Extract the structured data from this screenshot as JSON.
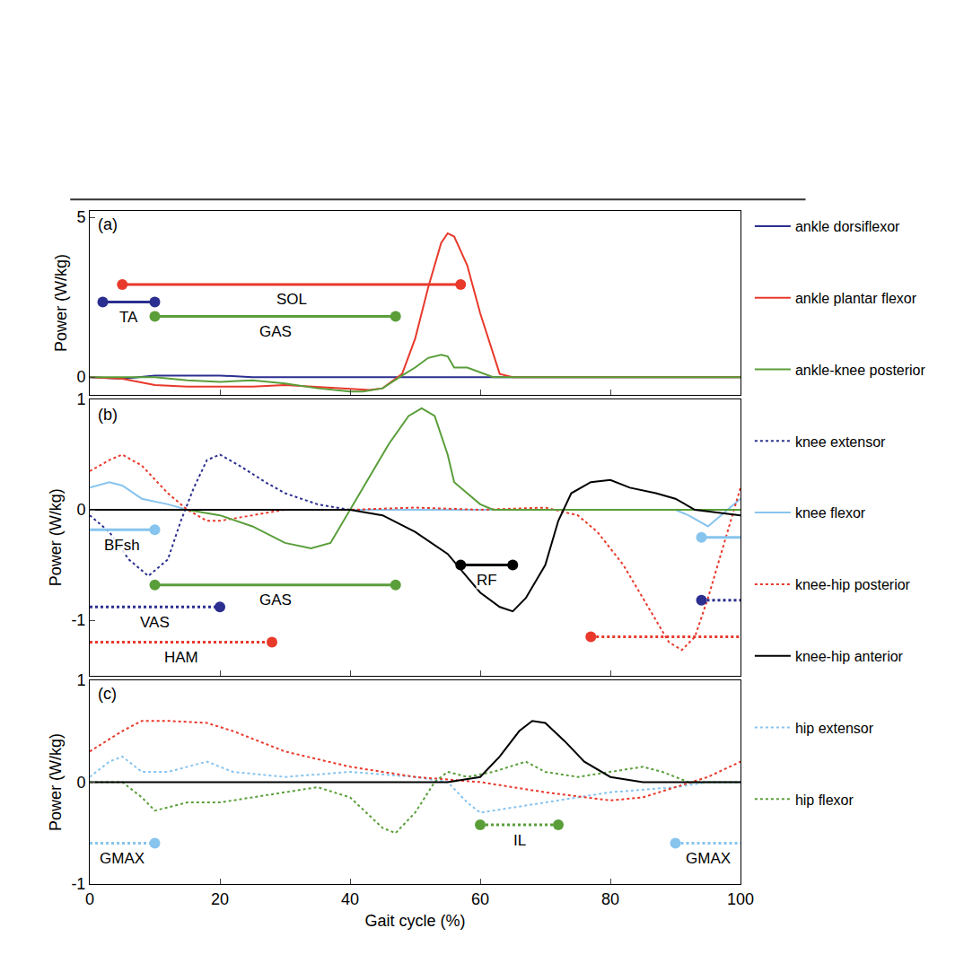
{
  "chart_data": [
    {
      "type": "line",
      "panel": "(a)",
      "ylabel": "Power (W/kg)",
      "xlim": [
        0,
        100
      ],
      "xticks": [
        0,
        20,
        40,
        60,
        80,
        100
      ],
      "ylim": [
        -0.55,
        5.2
      ],
      "yticks": [
        0,
        5
      ],
      "tick_labels": "y",
      "legend": "right",
      "series": [
        {
          "name": "ankle dorsiflexor",
          "color": "#2b2f8f",
          "line_style": "solid",
          "x": [
            0,
            5,
            10,
            20,
            25,
            100
          ],
          "values": [
            0,
            -0.05,
            0.05,
            0.05,
            0,
            0
          ]
        },
        {
          "name": "ankle plantar flexor",
          "color": "#e8392b",
          "line_style": "solid",
          "x": [
            0,
            5,
            10,
            15,
            20,
            25,
            30,
            35,
            40,
            43,
            45,
            48,
            50,
            52,
            54,
            55,
            56,
            58,
            60,
            62,
            63,
            65,
            100
          ],
          "values": [
            0,
            -0.05,
            -0.25,
            -0.3,
            -0.3,
            -0.3,
            -0.25,
            -0.3,
            -0.35,
            -0.4,
            -0.35,
            0.1,
            1.2,
            2.8,
            4.2,
            4.5,
            4.4,
            3.5,
            2.0,
            0.7,
            0.1,
            0,
            0
          ]
        },
        {
          "name": "ankle-knee posterior",
          "color": "#5a9e3a",
          "line_style": "solid",
          "x": [
            0,
            10,
            15,
            20,
            25,
            30,
            35,
            40,
            42,
            45,
            48,
            50,
            52,
            54,
            55,
            56,
            58,
            60,
            62,
            100
          ],
          "values": [
            0,
            0,
            -0.1,
            -0.15,
            -0.1,
            -0.2,
            -0.35,
            -0.45,
            -0.45,
            -0.35,
            0.05,
            0.3,
            0.6,
            0.7,
            0.65,
            0.3,
            0.3,
            0.15,
            0,
            0
          ]
        }
      ],
      "activity": [
        {
          "label": "SOL",
          "color": "#e8392b",
          "line_style": "solid",
          "x": [
            5,
            57
          ],
          "y": 2.9,
          "dots": [
            5,
            57
          ]
        },
        {
          "label": "TA",
          "color": "#2b2f8f",
          "line_style": "solid",
          "x": [
            2,
            10
          ],
          "y": 2.35,
          "dots": [
            2,
            10
          ]
        },
        {
          "label": "GAS",
          "color": "#5a9e3a",
          "line_style": "solid",
          "x": [
            10,
            47
          ],
          "y": 1.9,
          "dots": [
            10,
            47
          ]
        }
      ]
    },
    {
      "type": "line",
      "panel": "(b)",
      "ylabel": "Power (W/kg)",
      "xlim": [
        0,
        100
      ],
      "xticks": [
        0,
        20,
        40,
        60,
        80,
        100
      ],
      "ylim": [
        -1.5,
        1.0
      ],
      "yticks": [
        -1,
        0,
        1
      ],
      "tick_labels": "y",
      "series": [
        {
          "name": "knee extensor",
          "color": "#2b2f8f",
          "line_style": "dotted",
          "x": [
            0,
            3,
            6,
            9,
            12,
            14,
            16,
            18,
            20,
            23,
            27,
            30,
            35,
            40,
            100
          ],
          "values": [
            -0.05,
            -0.2,
            -0.45,
            -0.6,
            -0.45,
            -0.1,
            0.2,
            0.45,
            0.5,
            0.4,
            0.25,
            0.15,
            0.05,
            0,
            0
          ]
        },
        {
          "name": "knee flexor",
          "color": "#87c4ee",
          "line_style": "solid",
          "x": [
            0,
            3,
            5,
            8,
            12,
            15,
            20,
            90,
            92,
            95,
            97,
            100
          ],
          "values": [
            0.2,
            0.25,
            0.22,
            0.1,
            0.05,
            0,
            0,
            0,
            -0.05,
            -0.15,
            -0.05,
            0.1
          ]
        },
        {
          "name": "knee-hip posterior",
          "color": "#e8392b",
          "line_style": "dotted",
          "x": [
            0,
            3,
            5,
            8,
            12,
            15,
            18,
            20,
            25,
            30,
            40,
            50,
            60,
            70,
            75,
            78,
            82,
            86,
            89,
            91,
            93,
            95,
            97,
            100
          ],
          "values": [
            0.35,
            0.45,
            0.5,
            0.4,
            0.15,
            0,
            -0.1,
            -0.1,
            -0.05,
            0,
            0,
            0.02,
            0,
            0.02,
            -0.05,
            -0.2,
            -0.5,
            -0.9,
            -1.2,
            -1.27,
            -1.15,
            -0.8,
            -0.4,
            0.2
          ]
        },
        {
          "name": "ankle-knee posterior",
          "color": "#5a9e3a",
          "line_style": "solid",
          "x": [
            0,
            15,
            20,
            25,
            30,
            34,
            37,
            40,
            43,
            46,
            49,
            51,
            53,
            55,
            56,
            58,
            60,
            62,
            100
          ],
          "values": [
            0,
            0,
            -0.05,
            -0.15,
            -0.3,
            -0.35,
            -0.3,
            0,
            0.3,
            0.6,
            0.85,
            0.92,
            0.85,
            0.5,
            0.25,
            0.15,
            0.05,
            0,
            0
          ]
        },
        {
          "name": "knee-hip anterior",
          "color": "#000000",
          "line_style": "solid",
          "x": [
            0,
            40,
            45,
            50,
            55,
            60,
            63,
            65,
            67,
            70,
            72,
            74,
            77,
            80,
            83,
            87,
            90,
            93,
            100
          ],
          "values": [
            0,
            0,
            -0.05,
            -0.2,
            -0.4,
            -0.75,
            -0.88,
            -0.92,
            -0.8,
            -0.5,
            -0.1,
            0.15,
            0.25,
            0.27,
            0.2,
            0.15,
            0.1,
            0,
            -0.05
          ]
        }
      ],
      "activity": [
        {
          "label": "BFsh",
          "color": "#87c4ee",
          "line_style": "solid",
          "x": [
            0,
            10
          ],
          "y": -0.18,
          "dots": [
            10
          ]
        },
        {
          "color": "#87c4ee",
          "line_style": "solid",
          "x": [
            94,
            100
          ],
          "y": -0.25,
          "dots": [
            94
          ]
        },
        {
          "label": "GAS",
          "color": "#5a9e3a",
          "line_style": "solid",
          "x": [
            10,
            47
          ],
          "y": -0.68,
          "dots": [
            10,
            47
          ]
        },
        {
          "label": "VAS",
          "color": "#2b2f8f",
          "line_style": "dotted",
          "x": [
            0,
            20
          ],
          "y": -0.88,
          "dots": [
            20
          ]
        },
        {
          "color": "#2b2f8f",
          "line_style": "dotted",
          "x": [
            94,
            100
          ],
          "y": -0.82,
          "dots": [
            94
          ]
        },
        {
          "label": "HAM",
          "color": "#e8392b",
          "line_style": "dotted",
          "x": [
            0,
            28
          ],
          "y": -1.2,
          "dots": [
            28
          ]
        },
        {
          "color": "#e8392b",
          "line_style": "dotted",
          "x": [
            77,
            100
          ],
          "y": -1.15,
          "dots": [
            77
          ]
        },
        {
          "label": "RF",
          "color": "#000000",
          "line_style": "solid",
          "x": [
            57,
            65
          ],
          "y": -0.5,
          "dots": [
            57,
            65
          ]
        }
      ]
    },
    {
      "type": "line",
      "panel": "(c)",
      "ylabel": "Power (W/kg)",
      "xlabel": "Gait cycle (%)",
      "xlim": [
        0,
        100
      ],
      "xticks": [
        0,
        20,
        40,
        60,
        80,
        100
      ],
      "ylim": [
        -1,
        1
      ],
      "yticks": [
        -1,
        0,
        1
      ],
      "tick_labels": true,
      "series": [
        {
          "name": "hip extensor",
          "color": "#87c4ee",
          "line_style": "dotted",
          "x": [
            0,
            3,
            5,
            8,
            12,
            18,
            22,
            30,
            40,
            50,
            55,
            58,
            60,
            65,
            70,
            80,
            90,
            95,
            100
          ],
          "values": [
            0.05,
            0.2,
            0.25,
            0.1,
            0.1,
            0.2,
            0.1,
            0.05,
            0.1,
            0.05,
            0,
            -0.2,
            -0.3,
            -0.25,
            -0.2,
            -0.1,
            -0.05,
            0,
            0
          ]
        },
        {
          "name": "knee-hip posterior",
          "color": "#e8392b",
          "line_style": "dotted",
          "x": [
            0,
            5,
            8,
            12,
            18,
            22,
            30,
            40,
            50,
            60,
            70,
            80,
            85,
            90,
            95,
            100
          ],
          "values": [
            0.3,
            0.5,
            0.6,
            0.6,
            0.58,
            0.5,
            0.3,
            0.15,
            0.05,
            0,
            -0.1,
            -0.18,
            -0.15,
            -0.05,
            0.05,
            0.2
          ]
        },
        {
          "name": "hip flexor",
          "color": "#5a9e3a",
          "line_style": "dotted",
          "x": [
            0,
            5,
            8,
            10,
            15,
            20,
            25,
            30,
            35,
            40,
            45,
            47,
            50,
            53,
            55,
            58,
            62,
            67,
            70,
            75,
            80,
            85,
            88,
            92,
            100
          ],
          "values": [
            0,
            0,
            -0.15,
            -0.28,
            -0.2,
            -0.2,
            -0.15,
            -0.1,
            -0.05,
            -0.15,
            -0.45,
            -0.5,
            -0.3,
            0,
            0.1,
            0.05,
            0.1,
            0.2,
            0.1,
            0.05,
            0.1,
            0.15,
            0.1,
            0,
            0
          ]
        },
        {
          "name": "knee-hip anterior",
          "color": "#000000",
          "line_style": "solid",
          "x": [
            0,
            55,
            60,
            63,
            66,
            68,
            70,
            73,
            76,
            80,
            85,
            100
          ],
          "values": [
            0,
            0,
            0.05,
            0.25,
            0.5,
            0.6,
            0.58,
            0.4,
            0.2,
            0.05,
            0,
            0
          ]
        }
      ],
      "activity": [
        {
          "label": "GMAX",
          "color": "#87c4ee",
          "line_style": "dotted",
          "x": [
            0,
            10
          ],
          "y": -0.6,
          "dots": [
            10
          ]
        },
        {
          "label": "IL",
          "color": "#5a9e3a",
          "line_style": "dotted",
          "x": [
            60,
            72
          ],
          "y": -0.42,
          "dots": [
            60,
            72
          ]
        },
        {
          "label": "GMAX",
          "color": "#87c4ee",
          "line_style": "dotted",
          "x": [
            90,
            100
          ],
          "y": -0.6,
          "dots": [
            90
          ]
        }
      ]
    }
  ]
}
